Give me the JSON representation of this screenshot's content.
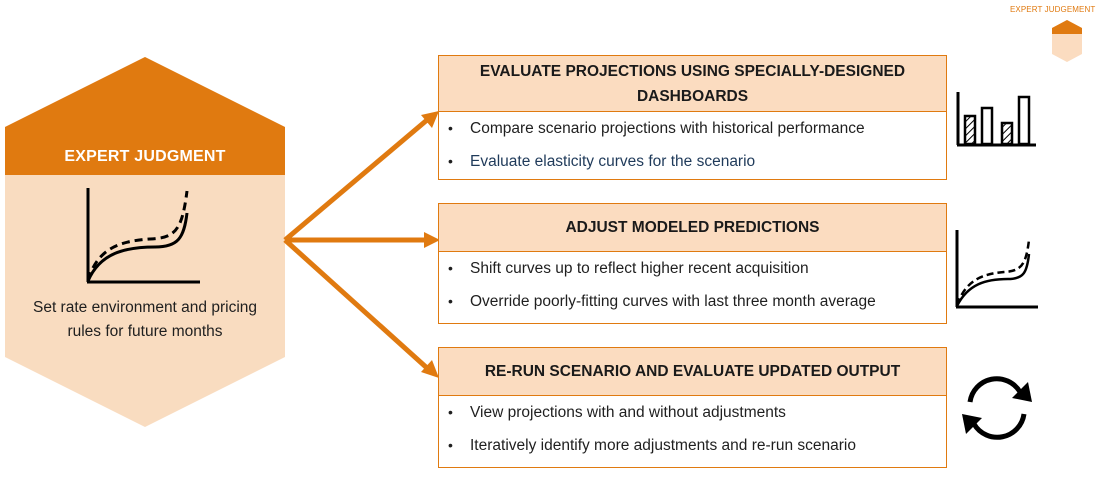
{
  "corner_label": "EXPERT JUDGEMENT",
  "hub": {
    "title": "EXPERT JUDGMENT",
    "description": "Set rate environment and pricing rules for future months"
  },
  "steps": [
    {
      "title": "EVALUATE PROJECTIONS USING SPECIALLY-DESIGNED DASHBOARDS",
      "bullets": [
        "Compare scenario projections with historical performance",
        "Evaluate elasticity curves for the scenario"
      ],
      "icon": "bar-chart-icon"
    },
    {
      "title": "ADJUST MODELED PREDICTIONS",
      "bullets": [
        "Shift curves up to reflect higher recent acquisition",
        "Override poorly-fitting curves with last three month average"
      ],
      "icon": "curve-chart-icon"
    },
    {
      "title": "RE-RUN SCENARIO AND EVALUATE UPDATED OUTPUT",
      "bullets": [
        "View projections with and without adjustments",
        "Iteratively identify more adjustments and re-run scenario"
      ],
      "icon": "refresh-cycle-icon"
    }
  ],
  "colors": {
    "accent": "#e07a10",
    "light_fill": "#fbdcc0",
    "hex_body": "#f9dcc0"
  }
}
